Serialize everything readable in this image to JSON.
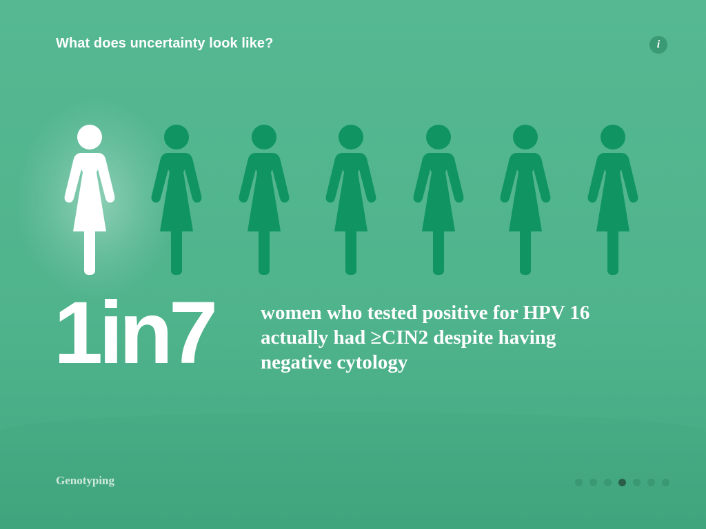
{
  "header": {
    "title": "What does uncertainty look like?",
    "info_label": "i"
  },
  "figures": {
    "total": 7,
    "highlighted": 1,
    "highlight_color": "#ffffff",
    "default_color": "#0f9462"
  },
  "stat": {
    "big": "1in7",
    "lines": [
      "women who tested positive for HPV 16",
      "actually had ≥CIN2 despite having",
      "negative cytology"
    ]
  },
  "footer": {
    "section_label": "Genotyping",
    "pager": {
      "total": 7,
      "active": 4
    }
  }
}
